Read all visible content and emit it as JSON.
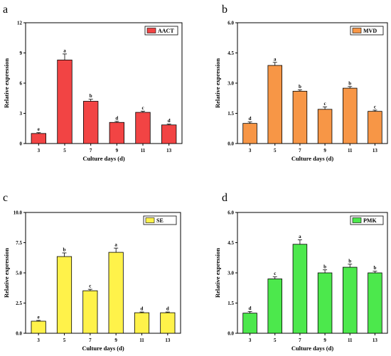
{
  "chart_data": [
    {
      "type": "bar",
      "panel_letter": "a",
      "categories": [
        "3",
        "5",
        "7",
        "9",
        "11",
        "13"
      ],
      "series": [
        {
          "name": "AACT",
          "values": [
            1.0,
            8.3,
            4.2,
            2.1,
            3.1,
            1.85
          ],
          "errors": [
            0.08,
            0.6,
            0.2,
            0.1,
            0.12,
            0.08
          ],
          "color": "#F24444"
        }
      ],
      "significance": [
        "e",
        "a",
        "b",
        "d",
        "c",
        "d"
      ],
      "xlabel": "Culture days (d)",
      "ylabel": "Relative expression",
      "ylim": [
        0,
        12
      ],
      "yticks": [
        0,
        3,
        6,
        9,
        12
      ],
      "ytick_labels": [
        "0",
        "3",
        "6",
        "9",
        "12"
      ],
      "legend_position": "top-right",
      "grid": false
    },
    {
      "type": "bar",
      "panel_letter": "b",
      "categories": [
        "3",
        "5",
        "7",
        "9",
        "11",
        "13"
      ],
      "series": [
        {
          "name": "MVD",
          "values": [
            1.0,
            3.88,
            2.6,
            1.7,
            2.75,
            1.6
          ],
          "errors": [
            0.07,
            0.15,
            0.07,
            0.12,
            0.08,
            0.06
          ],
          "color": "#F79646"
        }
      ],
      "significance": [
        "d",
        "a",
        "b",
        "c",
        "b",
        "c"
      ],
      "xlabel": "Culture days (d)",
      "ylabel": "Relative expression",
      "ylim": [
        0,
        6
      ],
      "yticks": [
        0,
        1.5,
        3,
        4.5,
        6
      ],
      "ytick_labels": [
        "0.0",
        "1.5",
        "3.0",
        "4.5",
        "6.0"
      ],
      "legend_position": "top-right",
      "grid": false
    },
    {
      "type": "bar",
      "panel_letter": "c",
      "categories": [
        "3",
        "5",
        "7",
        "9",
        "11",
        "13"
      ],
      "series": [
        {
          "name": "SE",
          "values": [
            1.0,
            6.35,
            3.52,
            6.7,
            1.7,
            1.7
          ],
          "errors": [
            0.06,
            0.3,
            0.12,
            0.35,
            0.06,
            0.06
          ],
          "color": "#FFF24A"
        }
      ],
      "significance": [
        "e",
        "b",
        "c",
        "a",
        "d",
        "d"
      ],
      "xlabel": "Culture days (d)",
      "ylabel": "Relative expression",
      "ylim": [
        0,
        10
      ],
      "yticks": [
        0,
        2.5,
        5,
        7.5,
        10
      ],
      "ytick_labels": [
        "0.0",
        "2.5",
        "5.0",
        "7.5",
        "10.0"
      ],
      "legend_position": "top-right",
      "grid": false
    },
    {
      "type": "bar",
      "panel_letter": "d",
      "categories": [
        "3",
        "5",
        "7",
        "9",
        "11",
        "13"
      ],
      "series": [
        {
          "name": "PMK",
          "values": [
            1.0,
            2.7,
            4.42,
            3.0,
            3.28,
            3.0
          ],
          "errors": [
            0.08,
            0.1,
            0.22,
            0.15,
            0.15,
            0.08
          ],
          "color": "#4CE84C"
        }
      ],
      "significance": [
        "d",
        "c",
        "a",
        "b",
        "b",
        "b"
      ],
      "xlabel": "Culture days (d)",
      "ylabel": "Relative expression",
      "ylim": [
        0,
        6
      ],
      "yticks": [
        0,
        1.5,
        3,
        4.5,
        6
      ],
      "ytick_labels": [
        "0.0",
        "1.5",
        "3.0",
        "4.5",
        "6.0"
      ],
      "legend_position": "top-right",
      "grid": false
    }
  ]
}
